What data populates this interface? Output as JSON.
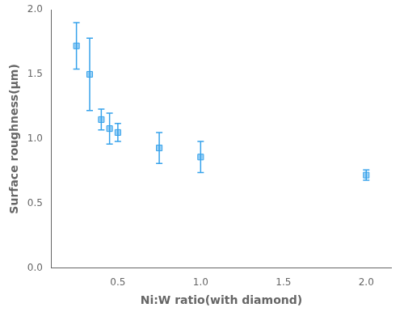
{
  "chart_data": {
    "type": "scatter",
    "x": [
      0.25,
      0.33,
      0.4,
      0.45,
      0.5,
      0.75,
      1.0,
      2.0
    ],
    "values": [
      1.72,
      1.5,
      1.15,
      1.08,
      1.05,
      0.93,
      0.86,
      0.72
    ],
    "yerr": [
      0.18,
      0.28,
      0.08,
      0.12,
      0.07,
      0.12,
      0.12,
      0.04
    ],
    "marker": "square",
    "x_label": "Ni:W ratio(with diamond)",
    "y_label": "Surface roughness(μm)",
    "xlim": [
      0.1,
      2.15
    ],
    "ylim": [
      0.0,
      2.0
    ],
    "xticks": [
      0.5,
      {
        "value": 1.0,
        "label": "1.0"
      },
      1.5,
      {
        "value": 2.0,
        "label": "2.0"
      }
    ],
    "yticks": [
      {
        "value": 0.0,
        "label": "0.0"
      },
      0.5,
      {
        "value": 1.0,
        "label": "1.0"
      },
      1.5,
      {
        "value": 2.0,
        "label": "2.0"
      }
    ],
    "grid": false
  }
}
